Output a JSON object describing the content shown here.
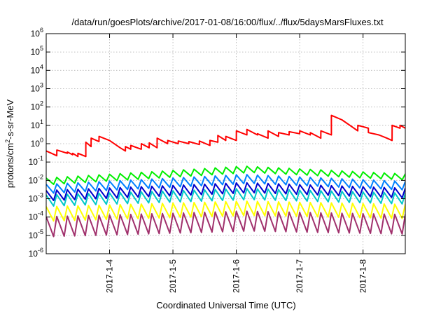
{
  "chart_data": {
    "type": "line",
    "title": "/data/run/goesPlots/archive/2017-01-08/16:00/flux/../flux/5daysMarsFluxes.txt",
    "xlabel": "Coordinated Universal Time (UTC)",
    "ylabel_parts": {
      "base": "protons/cm",
      "exp": "2",
      "rest": "-s-sr-MeV"
    },
    "y_scale": "log",
    "ylim": [
      1e-06,
      1000000.0
    ],
    "y_ticks": [
      {
        "value": 1000000.0,
        "base": "10",
        "exp": "6"
      },
      {
        "value": 100000.0,
        "base": "10",
        "exp": "5"
      },
      {
        "value": 10000.0,
        "base": "10",
        "exp": "4"
      },
      {
        "value": 1000.0,
        "base": "10",
        "exp": "3"
      },
      {
        "value": 100.0,
        "base": "10",
        "exp": "2"
      },
      {
        "value": 10.0,
        "base": "10",
        "exp": "1"
      },
      {
        "value": 1.0,
        "base": "10",
        "exp": "0"
      },
      {
        "value": 0.1,
        "base": "10",
        "exp": "-1"
      },
      {
        "value": 0.01,
        "base": "10",
        "exp": "-2"
      },
      {
        "value": 0.001,
        "base": "10",
        "exp": "-3"
      },
      {
        "value": 0.0001,
        "base": "10",
        "exp": "-4"
      },
      {
        "value": 1e-05,
        "base": "10",
        "exp": "-5"
      },
      {
        "value": 1e-06,
        "base": "10",
        "exp": "-6"
      }
    ],
    "xlim": [
      "2017-01-03 00:00",
      "2017-01-08 16:00"
    ],
    "x_ticks": [
      "2017-1-4",
      "2017-1-5",
      "2017-1-6",
      "2017-1-7",
      "2017-1-8"
    ],
    "x_tick_dates": [
      "2017-01-04",
      "2017-01-05",
      "2017-01-06",
      "2017-01-07",
      "2017-01-08"
    ],
    "grid": true,
    "legend": "none",
    "series": [
      {
        "color": "#ff0000",
        "pattern": "continuous",
        "points": [
          [
            "2017-01-03 00:00",
            0.4
          ],
          [
            "2017-01-03 02:00",
            0.3
          ],
          [
            "2017-01-03 04:00",
            0.22
          ],
          [
            "2017-01-03 04:01",
            0.45
          ],
          [
            "2017-01-03 08:00",
            0.3
          ],
          [
            "2017-01-03 08:01",
            0.35
          ],
          [
            "2017-01-03 10:00",
            0.25
          ],
          [
            "2017-01-03 10:01",
            0.3
          ],
          [
            "2017-01-03 12:00",
            0.2
          ],
          [
            "2017-01-03 12:01",
            0.3
          ],
          [
            "2017-01-03 15:00",
            0.2
          ],
          [
            "2017-01-03 15:01",
            1.2
          ],
          [
            "2017-01-03 17:00",
            0.7
          ],
          [
            "2017-01-03 17:01",
            2.0
          ],
          [
            "2017-01-03 20:00",
            1.3
          ],
          [
            "2017-01-03 20:01",
            2.5
          ],
          [
            "2017-01-04 00:00",
            1.5
          ],
          [
            "2017-01-04 04:00",
            0.6
          ],
          [
            "2017-01-04 06:00",
            0.4
          ],
          [
            "2017-01-04 06:01",
            0.7
          ],
          [
            "2017-01-04 08:00",
            0.5
          ],
          [
            "2017-01-04 08:01",
            0.8
          ],
          [
            "2017-01-04 12:00",
            0.5
          ],
          [
            "2017-01-04 12:01",
            1.0
          ],
          [
            "2017-01-04 15:00",
            0.6
          ],
          [
            "2017-01-04 15:01",
            1.1
          ],
          [
            "2017-01-04 18:00",
            0.6
          ],
          [
            "2017-01-04 18:01",
            2.0
          ],
          [
            "2017-01-04 22:00",
            1.0
          ],
          [
            "2017-01-04 22:01",
            1.5
          ],
          [
            "2017-01-05 02:00",
            1.0
          ],
          [
            "2017-01-05 02:01",
            1.4
          ],
          [
            "2017-01-05 06:00",
            1.0
          ],
          [
            "2017-01-05 06:01",
            1.3
          ],
          [
            "2017-01-05 10:00",
            0.9
          ],
          [
            "2017-01-05 10:01",
            1.4
          ],
          [
            "2017-01-05 14:00",
            0.8
          ],
          [
            "2017-01-05 14:01",
            1.5
          ],
          [
            "2017-01-05 17:00",
            1.2
          ],
          [
            "2017-01-05 17:01",
            2.8
          ],
          [
            "2017-01-05 20:00",
            1.5
          ],
          [
            "2017-01-05 20:01",
            2.5
          ],
          [
            "2017-01-06 00:00",
            1.5
          ],
          [
            "2017-01-06 00:01",
            5.0
          ],
          [
            "2017-01-06 04:00",
            3.0
          ],
          [
            "2017-01-06 04:01",
            6.0
          ],
          [
            "2017-01-06 08:00",
            3.0
          ],
          [
            "2017-01-06 08:01",
            3.5
          ],
          [
            "2017-01-06 12:00",
            2.0
          ],
          [
            "2017-01-06 12:01",
            5.0
          ],
          [
            "2017-01-06 16:00",
            2.5
          ],
          [
            "2017-01-06 16:01",
            4.0
          ],
          [
            "2017-01-06 20:00",
            3.0
          ],
          [
            "2017-01-06 20:01",
            4.5
          ],
          [
            "2017-01-07 00:00",
            3.5
          ],
          [
            "2017-01-07 00:01",
            5.0
          ],
          [
            "2017-01-07 04:00",
            3.0
          ],
          [
            "2017-01-07 04:01",
            4.0
          ],
          [
            "2017-01-07 08:00",
            2.0
          ],
          [
            "2017-01-07 08:01",
            5.0
          ],
          [
            "2017-01-07 12:00",
            3.0
          ],
          [
            "2017-01-07 12:01",
            35.0
          ],
          [
            "2017-01-07 16:00",
            20.0
          ],
          [
            "2017-01-07 20:00",
            8.0
          ],
          [
            "2017-01-07 22:00",
            5.0
          ],
          [
            "2017-01-07 22:01",
            10.0
          ],
          [
            "2017-01-08 02:00",
            7.0
          ],
          [
            "2017-01-08 02:01",
            4.0
          ],
          [
            "2017-01-08 06:00",
            3.0
          ],
          [
            "2017-01-08 09:00",
            2.0
          ],
          [
            "2017-01-08 11:00",
            1.5
          ],
          [
            "2017-01-08 11:01",
            10.0
          ],
          [
            "2017-01-08 14:00",
            7.0
          ],
          [
            "2017-01-08 14:01",
            10.0
          ],
          [
            "2017-01-08 16:00",
            7.0
          ]
        ]
      },
      {
        "color": "#00ee00",
        "pattern": "sawtooth",
        "level_start": 0.009,
        "level_mid": 0.04,
        "level_end": 0.015,
        "amplitude": 2.2
      },
      {
        "color": "#0080ff",
        "pattern": "sawtooth",
        "level_start": 0.0035,
        "level_mid": 0.012,
        "level_end": 0.005,
        "amplitude": 3.0
      },
      {
        "color": "#0000cc",
        "pattern": "sawtooth",
        "level_start": 0.0015,
        "level_mid": 0.004,
        "level_end": 0.002,
        "amplitude": 3.5
      },
      {
        "color": "#00c8c8",
        "pattern": "sawtooth",
        "level_start": 0.0008,
        "level_mid": 0.0018,
        "level_end": 0.001,
        "amplitude": 4.0
      },
      {
        "color": "#ffff00",
        "pattern": "sawtooth",
        "level_start": 0.00015,
        "level_mid": 0.0003,
        "level_end": 0.0002,
        "amplitude": 6.0
      },
      {
        "color": "#a0306c",
        "pattern": "sawtooth",
        "level_start": 3e-05,
        "level_mid": 6e-05,
        "level_end": 4e-05,
        "amplitude": 12.0
      }
    ]
  }
}
